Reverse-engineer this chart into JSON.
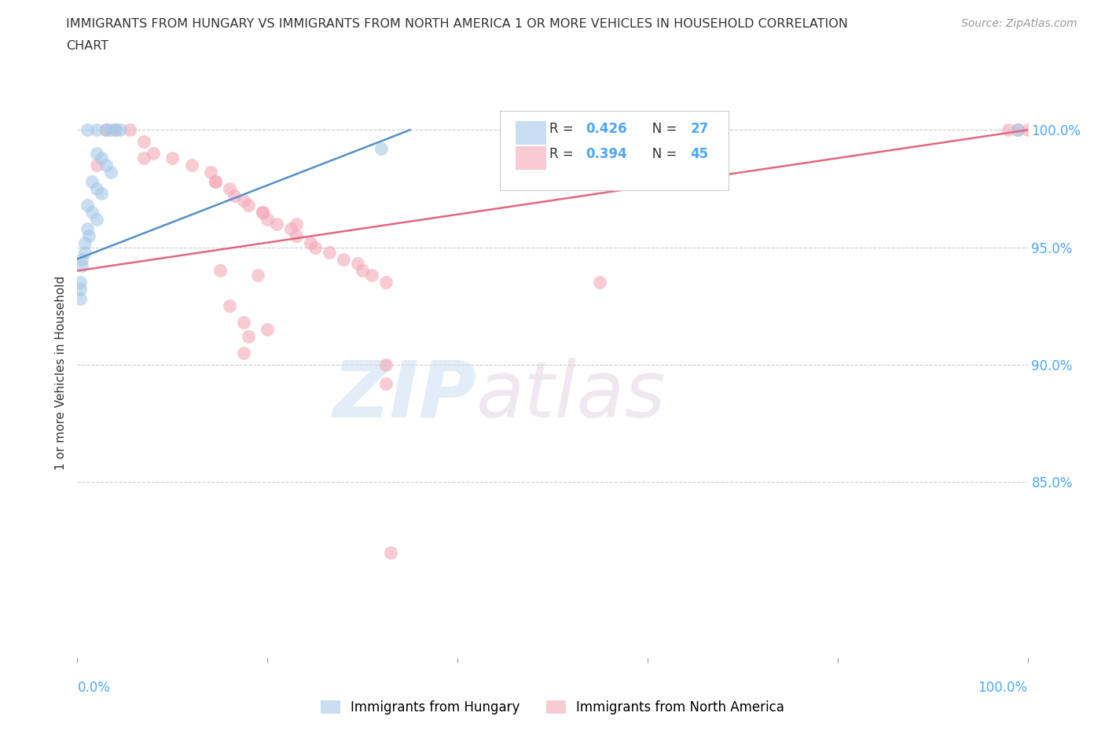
{
  "title_line1": "IMMIGRANTS FROM HUNGARY VS IMMIGRANTS FROM NORTH AMERICA 1 OR MORE VEHICLES IN HOUSEHOLD CORRELATION",
  "title_line2": "CHART",
  "source": "Source: ZipAtlas.com",
  "ylabel": "1 or more Vehicles in Household",
  "ytick_labels": [
    "100.0%",
    "95.0%",
    "90.0%",
    "85.0%"
  ],
  "ytick_values": [
    1.0,
    0.95,
    0.9,
    0.85
  ],
  "xlim": [
    0.0,
    1.0
  ],
  "ylim": [
    0.775,
    1.018
  ],
  "legend_blue_label": "Immigrants from Hungary",
  "legend_pink_label": "Immigrants from North America",
  "R_blue": 0.426,
  "N_blue": 27,
  "R_pink": 0.394,
  "N_pink": 45,
  "color_blue": "#a8c8e8",
  "color_pink": "#f4a8b8",
  "color_blue_line": "#5590c8",
  "color_pink_line": "#e06880",
  "color_blue_text": "#4da6ff",
  "color_title": "#333333",
  "watermark_color": "#ddeeff",
  "grid_color": "#cccccc",
  "background_color": "#ffffff",
  "blue_x": [
    0.01,
    0.02,
    0.03,
    0.035,
    0.04,
    0.045,
    0.02,
    0.025,
    0.03,
    0.035,
    0.015,
    0.02,
    0.025,
    0.01,
    0.015,
    0.02,
    0.01,
    0.012,
    0.008,
    0.008,
    0.005,
    0.005,
    0.003,
    0.003,
    0.003,
    0.32,
    0.99
  ],
  "blue_y": [
    1.0,
    1.0,
    1.0,
    1.0,
    1.0,
    1.0,
    0.99,
    0.988,
    0.985,
    0.982,
    0.978,
    0.975,
    0.973,
    0.968,
    0.965,
    0.962,
    0.958,
    0.955,
    0.952,
    0.948,
    0.945,
    0.942,
    0.935,
    0.932,
    0.928,
    0.992,
    1.0
  ],
  "pink_x": [
    0.03,
    0.04,
    0.055,
    0.07,
    0.08,
    0.1,
    0.12,
    0.14,
    0.145,
    0.16,
    0.165,
    0.175,
    0.18,
    0.195,
    0.2,
    0.21,
    0.225,
    0.23,
    0.245,
    0.25,
    0.265,
    0.28,
    0.295,
    0.3,
    0.31,
    0.325,
    0.02,
    0.07,
    0.145,
    0.195,
    0.23,
    0.15,
    0.19,
    0.16,
    0.175,
    0.2,
    0.18,
    0.175,
    0.325,
    0.325,
    0.55,
    0.98,
    0.99,
    1.0,
    0.33
  ],
  "pink_y": [
    1.0,
    1.0,
    1.0,
    0.995,
    0.99,
    0.988,
    0.985,
    0.982,
    0.978,
    0.975,
    0.972,
    0.97,
    0.968,
    0.965,
    0.962,
    0.96,
    0.958,
    0.955,
    0.952,
    0.95,
    0.948,
    0.945,
    0.943,
    0.94,
    0.938,
    0.935,
    0.985,
    0.988,
    0.978,
    0.965,
    0.96,
    0.94,
    0.938,
    0.925,
    0.918,
    0.915,
    0.912,
    0.905,
    0.9,
    0.892,
    0.935,
    1.0,
    1.0,
    1.0,
    0.82
  ],
  "blue_line_x0": 0.0,
  "blue_line_x1": 0.35,
  "blue_line_y0": 0.945,
  "blue_line_y1": 1.0,
  "pink_line_x0": 0.0,
  "pink_line_x1": 1.0,
  "pink_line_y0": 0.94,
  "pink_line_y1": 1.0
}
